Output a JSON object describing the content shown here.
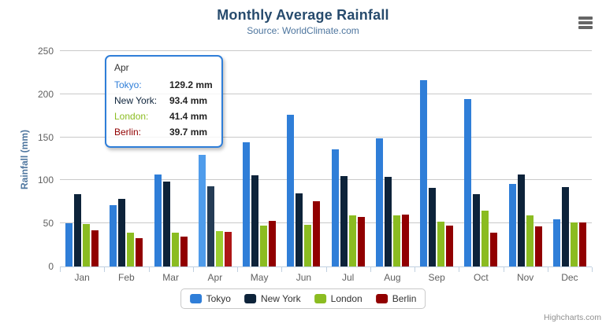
{
  "chart": {
    "title": "Monthly Average Rainfall",
    "subtitle": "Source: WorldClimate.com"
  },
  "tooltip": {
    "header": "Apr",
    "rows": [
      {
        "name": "Tokyo:",
        "value": "129.2 mm",
        "color": "#2f7ed8"
      },
      {
        "name": "New York:",
        "value": "93.4 mm",
        "color": "#0d233a"
      },
      {
        "name": "London:",
        "value": "41.4 mm",
        "color": "#8bbc21"
      },
      {
        "name": "Berlin:",
        "value": "39.7 mm",
        "color": "#910000"
      }
    ],
    "border_color": "#2f7ed8"
  },
  "credits": "Highcharts.com",
  "chart_data": {
    "type": "bar",
    "title": "Monthly Average Rainfall",
    "subtitle": "Source: WorldClimate.com",
    "ylabel": "Rainfall (mm)",
    "ylim": [
      0,
      250
    ],
    "yticks": [
      0,
      50,
      100,
      150,
      200,
      250
    ],
    "grid": true,
    "legend_position": "bottom",
    "categories": [
      "Jan",
      "Feb",
      "Mar",
      "Apr",
      "May",
      "Jun",
      "Jul",
      "Aug",
      "Sep",
      "Oct",
      "Nov",
      "Dec"
    ],
    "highlighted_category": "Apr",
    "series": [
      {
        "name": "Tokyo",
        "color": "#2f7ed8",
        "hover_color": "#4f9ceb",
        "values": [
          49.9,
          71.5,
          106.4,
          129.2,
          144.0,
          176.0,
          135.6,
          148.5,
          216.4,
          194.1,
          95.6,
          54.4
        ]
      },
      {
        "name": "New York",
        "color": "#0d233a",
        "hover_color": "#253c55",
        "values": [
          83.6,
          78.8,
          98.5,
          93.4,
          106.0,
          84.5,
          105.0,
          104.3,
          91.2,
          83.5,
          106.6,
          92.3
        ]
      },
      {
        "name": "London",
        "color": "#8bbc21",
        "hover_color": "#9ccf30",
        "values": [
          48.9,
          38.8,
          39.3,
          41.4,
          47.0,
          48.3,
          59.0,
          59.6,
          52.4,
          65.2,
          59.3,
          51.2
        ]
      },
      {
        "name": "Berlin",
        "color": "#910000",
        "hover_color": "#ad1616",
        "values": [
          42.4,
          33.2,
          34.5,
          39.7,
          52.6,
          75.5,
          57.4,
          60.4,
          47.6,
          39.1,
          46.8,
          51.1
        ]
      }
    ]
  }
}
